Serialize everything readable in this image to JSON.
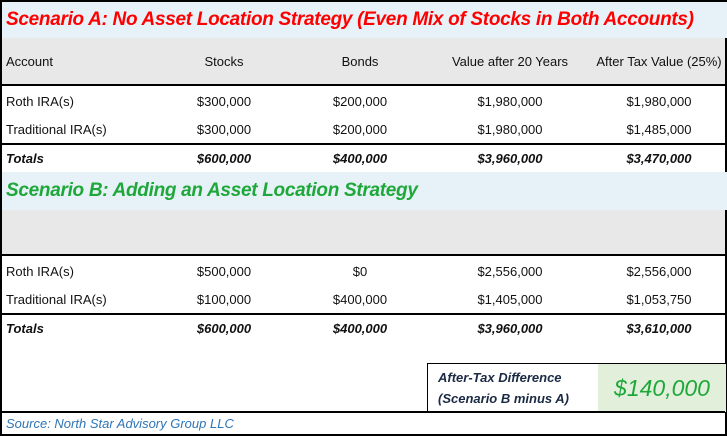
{
  "scenario_a": {
    "title": "Scenario A: No Asset Location Strategy (Even Mix of Stocks in Both Accounts)",
    "title_color": "#ff0000",
    "headers": [
      "Account",
      "Stocks",
      "Bonds",
      "Value after 20 Years",
      "After Tax Value (25%)"
    ],
    "rows": [
      [
        "Roth IRA(s)",
        "$300,000",
        "$200,000",
        "$1,980,000",
        "$1,980,000"
      ],
      [
        "Traditional IRA(s)",
        "$300,000",
        "$200,000",
        "$1,980,000",
        "$1,485,000"
      ]
    ],
    "totals": [
      "Totals",
      "$600,000",
      "$400,000",
      "$3,960,000",
      "$3,470,000"
    ]
  },
  "scenario_b": {
    "title": "Scenario B: Adding an Asset Location Strategy",
    "title_color": "#1fa83a",
    "rows": [
      [
        "Roth IRA(s)",
        "$500,000",
        "$0",
        "$2,556,000",
        "$2,556,000"
      ],
      [
        "Traditional IRA(s)",
        "$100,000",
        "$400,000",
        "$1,405,000",
        "$1,053,750"
      ]
    ],
    "totals": [
      "Totals",
      "$600,000",
      "$400,000",
      "$3,960,000",
      "$3,610,000"
    ]
  },
  "difference": {
    "label_line1": "After-Tax Difference",
    "label_line2": "(Scenario B minus A)",
    "value": "$140,000"
  },
  "source": "Source: North Star Advisory Group LLC"
}
